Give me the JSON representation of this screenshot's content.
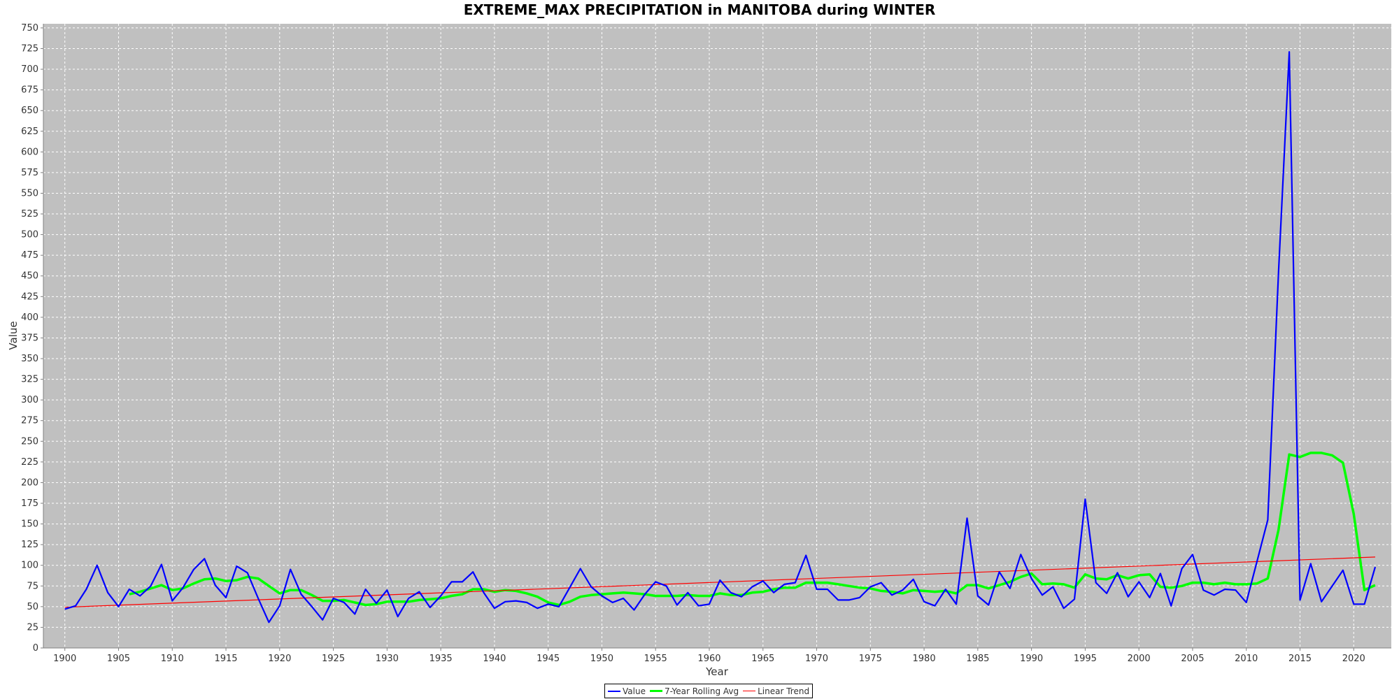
{
  "chart_data": {
    "type": "line",
    "title": "EXTREME_MAX PRECIPITATION in MANITOBA during WINTER",
    "xlabel": "Year",
    "ylabel": "Value",
    "xlim": [
      1898,
      2023.5
    ],
    "ylim": [
      0,
      755
    ],
    "x_ticks": [
      1900,
      1905,
      1910,
      1915,
      1920,
      1925,
      1930,
      1935,
      1940,
      1945,
      1950,
      1955,
      1960,
      1965,
      1970,
      1975,
      1980,
      1985,
      1990,
      1995,
      2000,
      2005,
      2010,
      2015,
      2020
    ],
    "y_ticks": [
      0,
      25,
      50,
      75,
      100,
      125,
      150,
      175,
      200,
      225,
      250,
      275,
      300,
      325,
      350,
      375,
      400,
      425,
      450,
      475,
      500,
      525,
      550,
      575,
      600,
      625,
      650,
      675,
      700,
      725,
      750
    ],
    "grid": true,
    "background": "#c0c0c0",
    "legend_position": "bottom-center",
    "series": [
      {
        "name": "Value",
        "color": "#0000ff",
        "x": [
          1900,
          1901,
          1902,
          1903,
          1904,
          1905,
          1906,
          1907,
          1908,
          1909,
          1910,
          1911,
          1912,
          1913,
          1914,
          1915,
          1916,
          1917,
          1918,
          1919,
          1920,
          1921,
          1922,
          1923,
          1924,
          1925,
          1926,
          1927,
          1928,
          1929,
          1930,
          1931,
          1932,
          1933,
          1934,
          1935,
          1936,
          1937,
          1938,
          1939,
          1940,
          1941,
          1942,
          1943,
          1944,
          1945,
          1946,
          1947,
          1948,
          1949,
          1950,
          1951,
          1952,
          1953,
          1954,
          1955,
          1956,
          1957,
          1958,
          1959,
          1960,
          1961,
          1962,
          1963,
          1964,
          1965,
          1966,
          1967,
          1968,
          1969,
          1970,
          1971,
          1972,
          1973,
          1974,
          1975,
          1976,
          1977,
          1978,
          1979,
          1980,
          1981,
          1982,
          1983,
          1984,
          1985,
          1986,
          1987,
          1988,
          1989,
          1990,
          1991,
          1992,
          1993,
          1994,
          1995,
          1996,
          1997,
          1998,
          1999,
          2000,
          2001,
          2002,
          2003,
          2004,
          2005,
          2006,
          2007,
          2008,
          2009,
          2010,
          2011,
          2012,
          2013,
          2014,
          2015,
          2016,
          2017,
          2019,
          2020,
          2021,
          2022
        ],
        "values": [
          47,
          51,
          71,
          100,
          67,
          50,
          71,
          63,
          75,
          101,
          57,
          73,
          95,
          108,
          76,
          61,
          99,
          91,
          60,
          31,
          51,
          95,
          65,
          50,
          34,
          60,
          55,
          41,
          71,
          54,
          70,
          38,
          60,
          68,
          49,
          63,
          80,
          80,
          92,
          67,
          48,
          56,
          57,
          55,
          48,
          53,
          50,
          73,
          96,
          74,
          63,
          55,
          60,
          46,
          65,
          80,
          75,
          52,
          67,
          51,
          53,
          82,
          67,
          62,
          74,
          81,
          67,
          77,
          79,
          112,
          71,
          71,
          58,
          58,
          61,
          74,
          79,
          64,
          70,
          83,
          56,
          51,
          71,
          53,
          157,
          63,
          52,
          92,
          72,
          113,
          84,
          64,
          74,
          48,
          59,
          180,
          79,
          66,
          91,
          62,
          80,
          61,
          90,
          51,
          96,
          113,
          70,
          64,
          71,
          70,
          55,
          105,
          155,
          455,
          721,
          58,
          102,
          56,
          94,
          53,
          53,
          98
        ]
      },
      {
        "name": "7-Year Rolling Avg",
        "color": "#00ff00",
        "x": [
          1906,
          1907,
          1908,
          1909,
          1910,
          1911,
          1912,
          1913,
          1914,
          1915,
          1916,
          1917,
          1918,
          1919,
          1920,
          1921,
          1922,
          1923,
          1924,
          1925,
          1926,
          1927,
          1928,
          1929,
          1930,
          1931,
          1932,
          1933,
          1934,
          1935,
          1936,
          1937,
          1938,
          1939,
          1940,
          1941,
          1942,
          1943,
          1944,
          1945,
          1946,
          1947,
          1948,
          1949,
          1950,
          1951,
          1952,
          1953,
          1954,
          1955,
          1956,
          1957,
          1958,
          1959,
          1960,
          1961,
          1962,
          1963,
          1964,
          1965,
          1966,
          1967,
          1968,
          1969,
          1970,
          1971,
          1972,
          1973,
          1974,
          1975,
          1976,
          1977,
          1978,
          1979,
          1980,
          1981,
          1982,
          1983,
          1984,
          1985,
          1986,
          1987,
          1988,
          1989,
          1990,
          1991,
          1992,
          1993,
          1994,
          1995,
          1996,
          1997,
          1998,
          1999,
          2000,
          2001,
          2002,
          2003,
          2004,
          2005,
          2006,
          2007,
          2008,
          2009,
          2010,
          2011,
          2012,
          2013,
          2014,
          2015,
          2016,
          2017,
          2018,
          2019,
          2020,
          2021,
          2022
        ],
        "values": [
          65,
          68,
          72,
          76,
          70,
          72,
          78,
          83,
          84,
          81,
          82,
          86,
          84,
          75,
          66,
          70,
          70,
          64,
          57,
          57,
          58,
          55,
          52,
          53,
          56,
          56,
          56,
          58,
          59,
          60,
          63,
          65,
          71,
          71,
          68,
          70,
          69,
          66,
          62,
          55,
          52,
          56,
          62,
          64,
          65,
          66,
          67,
          66,
          65,
          63,
          63,
          63,
          64,
          63,
          63,
          66,
          64,
          64,
          67,
          68,
          71,
          73,
          73,
          79,
          79,
          79,
          77,
          75,
          73,
          72,
          69,
          68,
          66,
          70,
          69,
          68,
          69,
          66,
          76,
          76,
          72,
          76,
          80,
          86,
          90,
          77,
          78,
          77,
          73,
          89,
          84,
          83,
          88,
          84,
          88,
          89,
          74,
          73,
          75,
          79,
          79,
          77,
          79,
          77,
          77,
          78,
          84,
          143,
          234,
          231,
          236,
          236,
          233,
          224,
          162,
          70,
          76
        ]
      },
      {
        "name": "Linear Trend",
        "color": "#ff0000",
        "x": [
          1900,
          2022
        ],
        "values": [
          49.3,
          110.0
        ]
      }
    ]
  }
}
